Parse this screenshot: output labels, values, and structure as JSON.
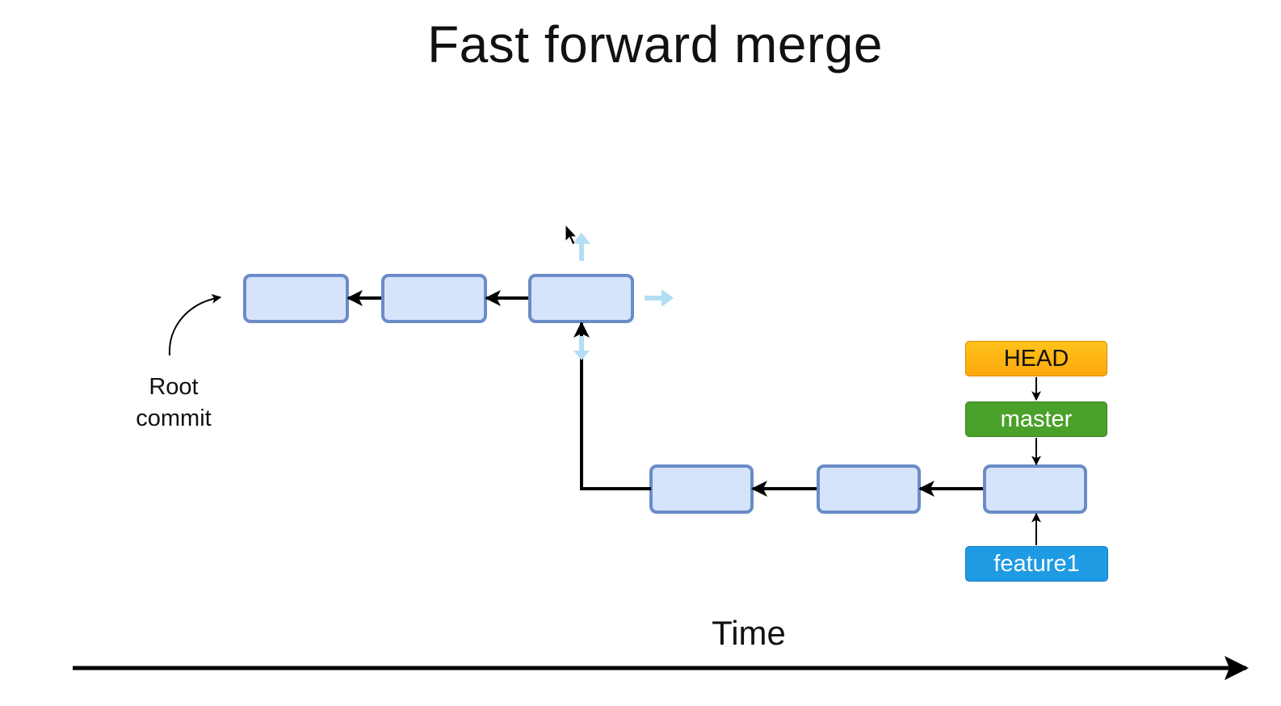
{
  "title": "Fast forward merge",
  "root_label": {
    "line1": "Root",
    "line2": "commit"
  },
  "time_label": "Time",
  "refs": {
    "head": {
      "label": "HEAD",
      "color": "#fca90a",
      "color_light": "#ffc21c"
    },
    "master": {
      "label": "master",
      "color": "#4aa12a"
    },
    "feature1": {
      "label": "feature1",
      "color": "#1e9be3"
    }
  },
  "commit_style": {
    "fill": "#d6e4fb",
    "stroke": "#6a8cc8"
  },
  "colors": {
    "arrow": "#000000",
    "selection_handle": "#b3def4"
  },
  "icons": [
    "cursor-icon",
    "resize-handle-up-icon",
    "resize-handle-right-icon",
    "resize-handle-down-icon"
  ]
}
